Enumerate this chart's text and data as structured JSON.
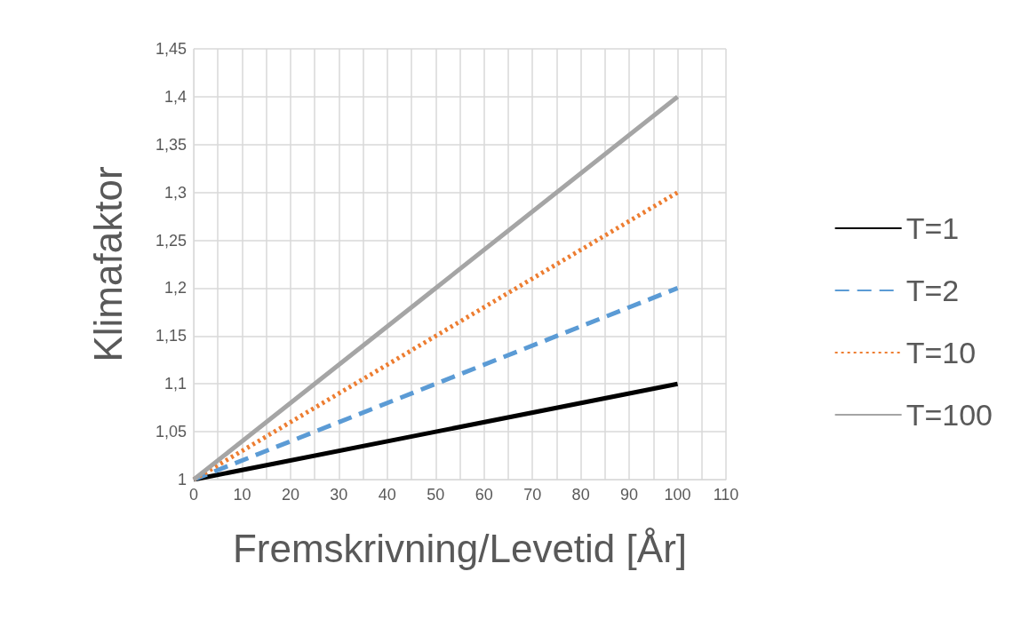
{
  "chart_data": {
    "type": "line",
    "xlabel": "Fremskrivning/Levetid [År]",
    "ylabel": "Klimafaktor",
    "series": [
      {
        "name": "T=1",
        "color": "#000000",
        "line_style": "solid",
        "x": [
          0,
          50,
          100
        ],
        "values": [
          1,
          1.05,
          1.1
        ]
      },
      {
        "name": "T=2",
        "color": "#5b9bd5",
        "line_style": "dashed",
        "x": [
          0,
          50,
          100
        ],
        "values": [
          1,
          1.1,
          1.2
        ]
      },
      {
        "name": "T=10",
        "color": "#ed7d31",
        "line_style": "dotted",
        "x": [
          0,
          50,
          100
        ],
        "values": [
          1,
          1.15,
          1.3
        ]
      },
      {
        "name": "T=100",
        "color": "#a5a5a5",
        "line_style": "solid",
        "x": [
          0,
          50,
          100
        ],
        "values": [
          1,
          1.2,
          1.4
        ]
      }
    ],
    "xlim": [
      0,
      110
    ],
    "xticks": [
      0,
      {
        "value": 5,
        "label": null
      },
      10,
      {
        "value": 15,
        "label": null
      },
      20,
      {
        "value": 25,
        "label": null
      },
      30,
      {
        "value": 35,
        "label": null
      },
      40,
      {
        "value": 45,
        "label": null
      },
      50,
      {
        "value": 55,
        "label": null
      },
      60,
      {
        "value": 65,
        "label": null
      },
      70,
      {
        "value": 75,
        "label": null
      },
      80,
      {
        "value": 85,
        "label": null
      },
      90,
      {
        "value": 95,
        "label": null
      },
      100,
      {
        "value": 105,
        "label": null
      },
      110
    ],
    "ylim": [
      1,
      1.45
    ],
    "yticks": [
      {
        "value": 1,
        "label": "1"
      },
      {
        "value": 1.05,
        "label": "1,05"
      },
      {
        "value": 1.1,
        "label": "1,1"
      },
      {
        "value": 1.15,
        "label": "1,15"
      },
      {
        "value": 1.2,
        "label": "1,2"
      },
      {
        "value": 1.25,
        "label": "1,25"
      },
      {
        "value": 1.3,
        "label": "1,3"
      },
      {
        "value": 1.35,
        "label": "1,35"
      },
      {
        "value": 1.4,
        "label": "1,4"
      },
      {
        "value": 1.45,
        "label": "1,45"
      }
    ],
    "grid": true,
    "legend": "right",
    "marker": "none"
  }
}
